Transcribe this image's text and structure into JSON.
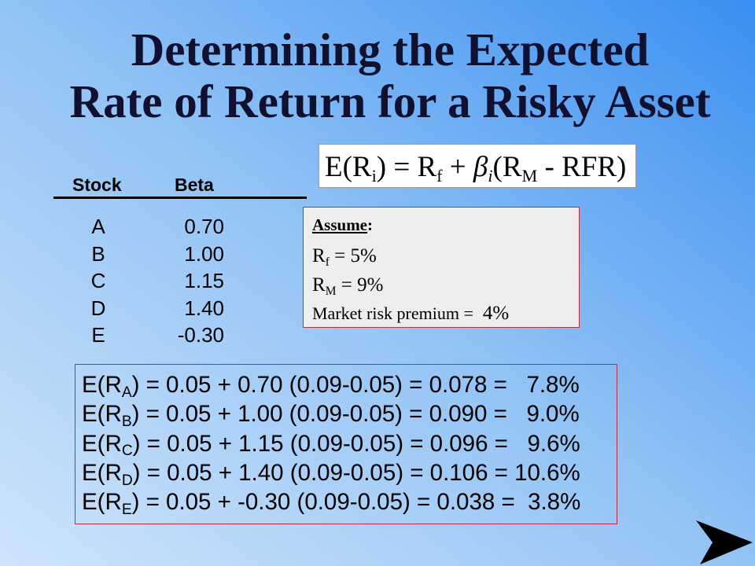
{
  "theme": {
    "background_light": "#cfe4fb",
    "background_mid": "#92c3f5",
    "background_dark": "#3a8ff1",
    "title_color": "#101030",
    "box_border": "#c8283c",
    "assume_fill": "#eeeeee"
  },
  "title": {
    "line1": "Determining the Expected",
    "line2": "Rate of Return for a Risky Asset"
  },
  "formula": {
    "segments": [
      "E(R",
      "i",
      ") = R",
      "f",
      " + ",
      "β",
      "i",
      "(R",
      "M",
      " - RFR)"
    ]
  },
  "stock_table": {
    "headers": {
      "stock": "Stock",
      "beta": "Beta"
    },
    "rows": [
      {
        "stock": "A",
        "beta": "0.70"
      },
      {
        "stock": "B",
        "beta": "1.00"
      },
      {
        "stock": "C",
        "beta": "1.15"
      },
      {
        "stock": "D",
        "beta": "1.40"
      },
      {
        "stock": "E",
        "beta": "-0.30"
      }
    ]
  },
  "assumptions": {
    "heading": "Assume",
    "heading_colon": ":",
    "risk_free_rate": {
      "symbol": "R",
      "subscript": "f",
      "value": "= 5%"
    },
    "market_return": {
      "symbol": "R",
      "subscript": "M",
      "value": "= 9%"
    },
    "market_risk_premium": {
      "label": "Market risk premium =",
      "value": "4%"
    }
  },
  "calculations": [
    {
      "lead": "E(R",
      "subscript": "A",
      "expression": ") = 0.05 + 0.70 (0.09-0.05) = 0.078 =   7.8%"
    },
    {
      "lead": "E(R",
      "subscript": "B",
      "expression": ") = 0.05 + 1.00 (0.09-0.05) = 0.090 =   9.0%"
    },
    {
      "lead": "E(R",
      "subscript": "C",
      "expression": ") = 0.05 + 1.15 (0.09-0.05) = 0.096 =   9.6%"
    },
    {
      "lead": "E(R",
      "subscript": "D",
      "expression": ") = 0.05 + 1.40 (0.09-0.05) = 0.106 = 10.6%"
    },
    {
      "lead": "E(R",
      "subscript": "E",
      "expression": ") = 0.05 + -0.30 (0.09-0.05) = 0.038 =  3.8%"
    }
  ],
  "navigation": {
    "next_icon": "arrow-right-icon"
  }
}
